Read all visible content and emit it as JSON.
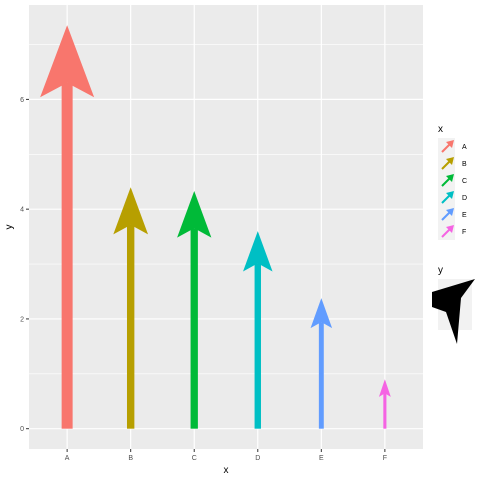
{
  "chart_data": {
    "type": "bar",
    "categories": [
      "A",
      "B",
      "C",
      "D",
      "E",
      "F"
    ],
    "values": [
      7.35,
      4.4,
      4.33,
      3.6,
      2.38,
      0.9
    ],
    "colors": [
      "#F8766D",
      "#B79F00",
      "#00BA38",
      "#00BFC4",
      "#619CFF",
      "#F564E3"
    ],
    "xlabel": "x",
    "ylabel": "y",
    "y_ticks": [
      0,
      2,
      4,
      6
    ],
    "ylim": [
      -0.37,
      7.72
    ],
    "grid": true,
    "mark": "arrow",
    "legend": {
      "placement": "right",
      "color_title": "x",
      "size_title": "y",
      "entries": [
        "A",
        "B",
        "C",
        "D",
        "E",
        "F"
      ]
    }
  }
}
